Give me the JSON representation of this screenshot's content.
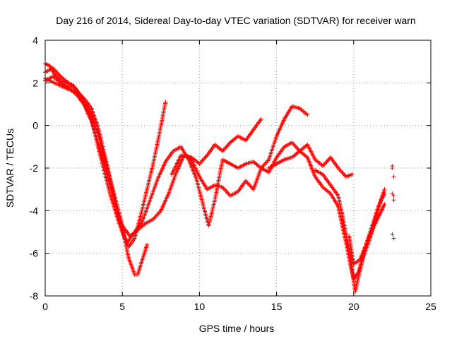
{
  "chart_data": {
    "type": "scatter",
    "title": "Day 216 of 2014, Sidereal Day-to-day VTEC variation (SDTVAR) for receiver warn",
    "xlabel": "GPS time / hours",
    "ylabel": "SDTVAR / TECUs",
    "xlim": [
      0,
      25
    ],
    "ylim": [
      -8,
      4
    ],
    "xticks": [
      0,
      5,
      10,
      15,
      20,
      25
    ],
    "yticks": [
      -8,
      -6,
      -4,
      -2,
      0,
      2,
      4
    ],
    "grid": true,
    "marker": "+",
    "color": "#ff0000",
    "series": [
      {
        "x": [
          0.0,
          0.3,
          0.6,
          1.0,
          1.4,
          1.8,
          2.2,
          2.6,
          3.0,
          3.4,
          3.8,
          4.2,
          4.6,
          5.0,
          5.4,
          5.8,
          6.2,
          6.6,
          7.0,
          7.4,
          7.8
        ],
        "y": [
          2.9,
          2.8,
          2.4,
          2.1,
          2.0,
          1.9,
          1.5,
          1.2,
          0.8,
          0.0,
          -1.2,
          -2.5,
          -3.8,
          -5.0,
          -5.7,
          -5.3,
          -4.2,
          -3.0,
          -1.8,
          -0.4,
          1.1
        ]
      },
      {
        "x": [
          0.0,
          0.5,
          1.0,
          1.5,
          2.0,
          2.5,
          3.0,
          3.5,
          4.0,
          4.5,
          5.0,
          5.4,
          5.8,
          6.0,
          6.3,
          6.6
        ],
        "y": [
          2.1,
          2.3,
          2.0,
          1.8,
          1.5,
          1.0,
          0.2,
          -1.0,
          -2.3,
          -3.6,
          -4.8,
          -6.2,
          -7.0,
          -7.0,
          -6.3,
          -5.6
        ]
      },
      {
        "x": [
          0.0,
          0.5,
          1.0,
          1.5,
          2.0,
          2.5,
          3.0,
          3.5,
          4.0,
          4.5,
          5.0,
          5.5,
          6.0,
          6.5,
          7.0,
          7.5,
          8.0,
          8.5,
          9.0,
          9.5,
          10.0,
          10.5,
          11.0,
          11.5,
          12.0,
          12.5,
          13.0,
          13.5,
          14.0
        ],
        "y": [
          2.5,
          2.7,
          2.3,
          2.0,
          1.7,
          1.2,
          0.5,
          -0.6,
          -2.0,
          -3.3,
          -4.7,
          -5.2,
          -4.9,
          -4.6,
          -4.4,
          -4.0,
          -3.2,
          -2.2,
          -1.4,
          -1.5,
          -1.8,
          -1.4,
          -0.9,
          -1.2,
          -0.8,
          -0.5,
          -0.7,
          -0.2,
          0.3
        ]
      },
      {
        "x": [
          0.0,
          0.6,
          1.2,
          1.8,
          2.4,
          3.0,
          3.6,
          4.2,
          4.8,
          5.3,
          5.8,
          6.3,
          6.8,
          7.3,
          7.8,
          8.3,
          8.8,
          9.3,
          9.8,
          10.3,
          10.6,
          11.0,
          11.5,
          12.0,
          12.5,
          13.0,
          13.5,
          14.0,
          14.5,
          15.0,
          15.5,
          16.0,
          16.5,
          17.0
        ],
        "y": [
          2.2,
          2.0,
          1.8,
          1.6,
          1.2,
          0.3,
          -1.5,
          -3.2,
          -4.6,
          -5.5,
          -5.0,
          -4.5,
          -3.5,
          -2.5,
          -1.7,
          -1.2,
          -1.0,
          -1.6,
          -2.5,
          -3.9,
          -4.7,
          -3.5,
          -1.6,
          -1.8,
          -2.0,
          -1.8,
          -1.7,
          -2.0,
          -1.6,
          -0.5,
          0.3,
          0.9,
          0.8,
          0.5
        ]
      },
      {
        "x": [
          8.2,
          8.8,
          9.4,
          10.0,
          10.5,
          11.0,
          11.5,
          12.0,
          12.5,
          13.0,
          13.5,
          14.0,
          14.5,
          15.0,
          15.5,
          16.0,
          16.5,
          17.0,
          17.5,
          18.0,
          18.5,
          19.0,
          19.5,
          19.9
        ],
        "y": [
          -2.3,
          -1.4,
          -1.5,
          -2.4,
          -3.0,
          -2.8,
          -2.9,
          -3.3,
          -3.1,
          -2.6,
          -3.0,
          -2.0,
          -2.2,
          -1.5,
          -1.0,
          -0.8,
          -1.2,
          -0.9,
          -1.6,
          -1.9,
          -1.5,
          -2.0,
          -2.4,
          -2.3
        ]
      },
      {
        "x": [
          14.5,
          15.0,
          15.5,
          16.0,
          16.5,
          17.0,
          17.5,
          18.0,
          18.5,
          19.0,
          19.3,
          19.6,
          19.8,
          20.0,
          20.3,
          20.6,
          21.0,
          21.4,
          21.8,
          22.0
        ],
        "y": [
          -2.0,
          -1.8,
          -1.6,
          -1.5,
          -1.2,
          -1.5,
          -2.4,
          -2.9,
          -3.2,
          -3.8,
          -4.8,
          -5.8,
          -6.6,
          -7.2,
          -6.9,
          -6.2,
          -5.4,
          -4.4,
          -3.4,
          -3.0
        ]
      },
      {
        "x": [
          17.5,
          18.0,
          18.5,
          19.0,
          19.4,
          19.8,
          20.1,
          20.4,
          20.8,
          21.2,
          21.6,
          22.0
        ],
        "y": [
          -2.1,
          -2.3,
          -2.8,
          -3.3,
          -4.7,
          -6.2,
          -7.8,
          -6.8,
          -5.6,
          -4.7,
          -3.8,
          -3.2
        ]
      },
      {
        "x": [
          19.7,
          20.0,
          20.4,
          20.8,
          21.2,
          21.6,
          22.0
        ],
        "y": [
          -5.2,
          -6.5,
          -6.3,
          -5.6,
          -4.9,
          -4.3,
          -3.7
        ]
      },
      {
        "x": [
          22.5,
          22.6,
          22.5,
          22.6,
          22.5,
          22.6,
          22.5,
          22.6
        ],
        "y": [
          -2.0,
          -2.4,
          -3.2,
          -3.5,
          -5.1,
          -5.3,
          -1.9,
          -3.3
        ]
      }
    ]
  }
}
